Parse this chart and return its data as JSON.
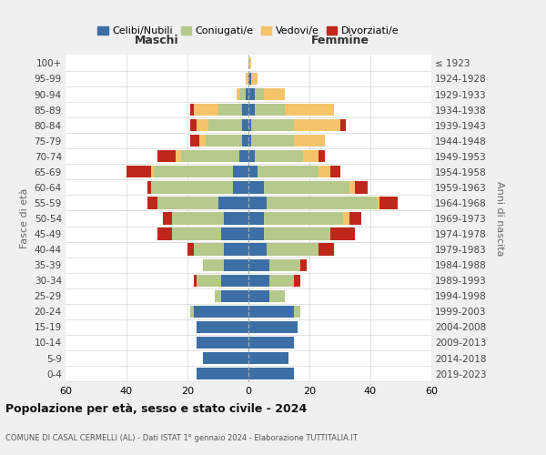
{
  "age_groups": [
    "0-4",
    "5-9",
    "10-14",
    "15-19",
    "20-24",
    "25-29",
    "30-34",
    "35-39",
    "40-44",
    "45-49",
    "50-54",
    "55-59",
    "60-64",
    "65-69",
    "70-74",
    "75-79",
    "80-84",
    "85-89",
    "90-94",
    "95-99",
    "100+"
  ],
  "birth_years": [
    "2019-2023",
    "2014-2018",
    "2009-2013",
    "2004-2008",
    "1999-2003",
    "1994-1998",
    "1989-1993",
    "1984-1988",
    "1979-1983",
    "1974-1978",
    "1969-1973",
    "1964-1968",
    "1959-1963",
    "1954-1958",
    "1949-1953",
    "1944-1948",
    "1939-1943",
    "1934-1938",
    "1929-1933",
    "1924-1928",
    "≤ 1923"
  ],
  "colors": {
    "celibe": "#3b6fa5",
    "coniugato": "#b5c98a",
    "vedovo": "#f5c46a",
    "divorziato": "#c0271b"
  },
  "males": {
    "celibe": [
      17,
      15,
      17,
      17,
      18,
      9,
      9,
      8,
      8,
      9,
      8,
      10,
      5,
      5,
      3,
      2,
      2,
      2,
      1,
      0,
      0
    ],
    "coniugato": [
      0,
      0,
      0,
      0,
      1,
      2,
      8,
      7,
      10,
      16,
      17,
      20,
      27,
      26,
      19,
      12,
      11,
      8,
      2,
      0,
      0
    ],
    "vedovo": [
      0,
      0,
      0,
      0,
      0,
      0,
      0,
      0,
      0,
      0,
      0,
      0,
      0,
      1,
      2,
      2,
      4,
      8,
      1,
      1,
      0
    ],
    "divorziato": [
      0,
      0,
      0,
      0,
      0,
      0,
      1,
      0,
      2,
      5,
      3,
      3,
      1,
      8,
      6,
      3,
      2,
      1,
      0,
      0,
      0
    ]
  },
  "females": {
    "nubile": [
      15,
      13,
      15,
      16,
      15,
      7,
      7,
      7,
      6,
      5,
      5,
      6,
      5,
      3,
      2,
      1,
      1,
      2,
      2,
      1,
      0
    ],
    "coniugata": [
      0,
      0,
      0,
      0,
      2,
      5,
      8,
      10,
      17,
      22,
      26,
      36,
      28,
      20,
      16,
      14,
      14,
      10,
      3,
      0,
      0
    ],
    "vedova": [
      0,
      0,
      0,
      0,
      0,
      0,
      0,
      0,
      0,
      0,
      2,
      1,
      2,
      4,
      5,
      10,
      15,
      16,
      7,
      2,
      1
    ],
    "divorziata": [
      0,
      0,
      0,
      0,
      0,
      0,
      2,
      2,
      5,
      8,
      4,
      6,
      4,
      3,
      2,
      0,
      2,
      0,
      0,
      0,
      0
    ]
  },
  "xlim": 60,
  "title": "Popolazione per età, sesso e stato civile - 2024",
  "subtitle": "COMUNE DI CASAL CERMELLI (AL) - Dati ISTAT 1° gennaio 2024 - Elaborazione TUTTITALIA.IT",
  "ylabel_left": "Fasce di età",
  "ylabel_right": "Anni di nascita",
  "xlabel_left": "Maschi",
  "xlabel_right": "Femmine",
  "bg_color": "#f0f0f0",
  "plot_bg": "#ffffff",
  "legend_labels": [
    "Celibi/Nubili",
    "Coniugati/e",
    "Vedovi/e",
    "Divorziati/e"
  ]
}
